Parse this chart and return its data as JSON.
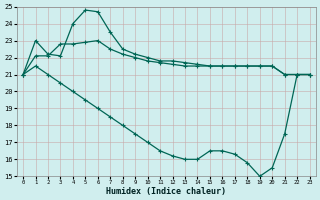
{
  "xlabel": "Humidex (Indice chaleur)",
  "bg_color": "#d0eeee",
  "grid_color": "#b0d8d0",
  "line_color": "#006655",
  "xlim": [
    -0.5,
    23.5
  ],
  "ylim": [
    15,
    25
  ],
  "xticks": [
    0,
    1,
    2,
    3,
    4,
    5,
    6,
    7,
    8,
    9,
    10,
    11,
    12,
    13,
    14,
    15,
    16,
    17,
    18,
    19,
    20,
    21,
    22,
    23
  ],
  "yticks": [
    15,
    16,
    17,
    18,
    19,
    20,
    21,
    22,
    23,
    24,
    25
  ],
  "line1_x": [
    0,
    1,
    2,
    3,
    4,
    5,
    6,
    7,
    8,
    9,
    10,
    11,
    12,
    13,
    14,
    15,
    16,
    17,
    18,
    19,
    20,
    21,
    22,
    23
  ],
  "line1_y": [
    21.0,
    23.0,
    22.2,
    22.1,
    24.0,
    24.8,
    24.7,
    23.5,
    22.5,
    22.2,
    22.0,
    21.8,
    21.8,
    21.7,
    21.6,
    21.5,
    21.5,
    21.5,
    21.5,
    21.5,
    21.5,
    21.0,
    21.0,
    21.0
  ],
  "line2_x": [
    0,
    1,
    2,
    3,
    4,
    5,
    6,
    7,
    8,
    9,
    10,
    11,
    12,
    13,
    14,
    15,
    16,
    17,
    18,
    19,
    20,
    21,
    22,
    23
  ],
  "line2_y": [
    21.0,
    22.1,
    22.1,
    22.8,
    22.8,
    22.9,
    23.0,
    22.5,
    22.2,
    22.0,
    21.8,
    21.7,
    21.6,
    21.5,
    21.5,
    21.5,
    21.5,
    21.5,
    21.5,
    21.5,
    21.5,
    21.0,
    21.0,
    21.0
  ],
  "line3_x": [
    0,
    1,
    2,
    3,
    4,
    5,
    6,
    7,
    8,
    9,
    10,
    11,
    12,
    13,
    14,
    15,
    16,
    17,
    18,
    19,
    20,
    21,
    22,
    23
  ],
  "line3_y": [
    21.0,
    21.5,
    21.0,
    20.5,
    20.0,
    19.5,
    19.0,
    18.5,
    18.0,
    17.5,
    17.0,
    16.5,
    16.2,
    16.0,
    16.0,
    16.5,
    16.5,
    16.3,
    15.8,
    15.0,
    15.5,
    17.5,
    21.0,
    21.0
  ]
}
